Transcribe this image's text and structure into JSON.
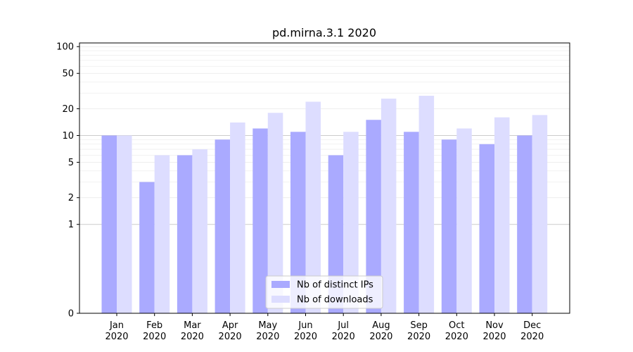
{
  "chart_data": {
    "type": "bar",
    "title": "pd.mirna.3.1 2020",
    "xlabel": "",
    "ylabel": "",
    "yscale": "symlog",
    "ylim": [
      0,
      110
    ],
    "yticks": [
      0,
      1,
      2,
      5,
      10,
      20,
      50,
      100
    ],
    "ytick_labels": [
      "0",
      "1",
      "2",
      "5",
      "10",
      "20",
      "50",
      "100"
    ],
    "grid": "horizontal, light",
    "categories": [
      "Jan\n2020",
      "Feb\n2020",
      "Mar\n2020",
      "Apr\n2020",
      "May\n2020",
      "Jun\n2020",
      "Jul\n2020",
      "Aug\n2020",
      "Sep\n2020",
      "Oct\n2020",
      "Nov\n2020",
      "Dec\n2020"
    ],
    "series": [
      {
        "name": "Nb of distinct IPs",
        "color": "#aaaaff",
        "values": [
          10,
          3,
          6,
          9,
          12,
          11,
          6,
          15,
          11,
          9,
          8,
          10
        ]
      },
      {
        "name": "Nb of downloads",
        "color": "#ddddff",
        "values": [
          10,
          6,
          7,
          14,
          18,
          24,
          11,
          26,
          28,
          12,
          16,
          17
        ]
      }
    ],
    "legend_position": "bottom-center"
  }
}
